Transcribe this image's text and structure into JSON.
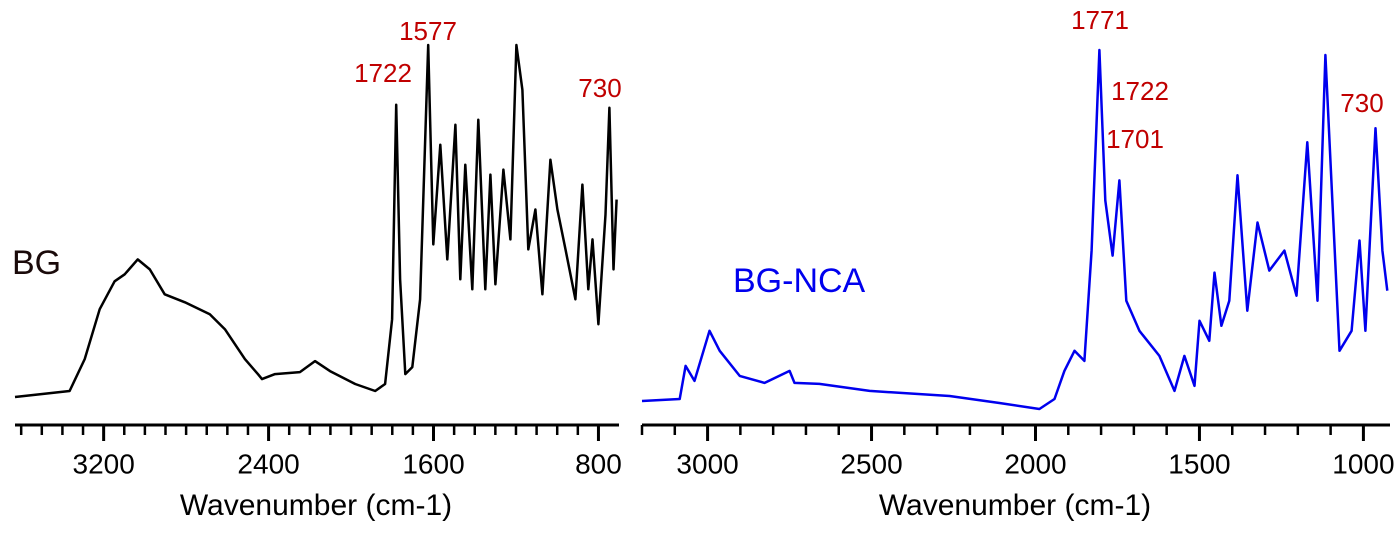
{
  "chart_data": [
    {
      "type": "line",
      "xlabel": "Wavenumber (cm-1)",
      "xlim": [
        3630,
        710
      ],
      "xticks": [
        3200,
        2400,
        1600,
        800
      ],
      "xminor": [
        3600,
        3500,
        3400,
        3300,
        3100,
        3000,
        2900,
        2800,
        2700,
        2600,
        2500,
        2300,
        2200,
        2100,
        2000,
        1900,
        1800,
        1700,
        1500,
        1400,
        1300,
        1200,
        1100,
        1000,
        900
      ],
      "annotation_color": "#c00000",
      "annotations": [
        "1722",
        "1577",
        "730"
      ],
      "series": [
        {
          "name": "BG",
          "color": "#000000",
          "label_color": "#1a0a0a",
          "x": [
            3630,
            3365,
            3292,
            3219,
            3147,
            3098,
            3035,
            2976,
            2904,
            2806,
            2685,
            2612,
            2515,
            2452,
            2432,
            2369,
            2248,
            2175,
            2102,
            1980,
            1883,
            1835,
            1801,
            1781,
            1762,
            1737,
            1703,
            1665,
            1626,
            1601,
            1567,
            1533,
            1494,
            1470,
            1446,
            1412,
            1383,
            1349,
            1324,
            1300,
            1261,
            1227,
            1198,
            1169,
            1140,
            1106,
            1072,
            1033,
            999,
            960,
            912,
            878,
            849,
            829,
            800,
            766,
            747,
            727,
            712
          ],
          "values": [
            2,
            8,
            40,
            90,
            118,
            125,
            140,
            130,
            105,
            97,
            85,
            70,
            40,
            25,
            20,
            25,
            27,
            38,
            28,
            15,
            8,
            15,
            80,
            295,
            120,
            25,
            32,
            100,
            355,
            155,
            255,
            140,
            275,
            120,
            235,
            110,
            280,
            110,
            225,
            115,
            230,
            160,
            355,
            310,
            150,
            190,
            105,
            240,
            190,
            150,
            100,
            215,
            110,
            160,
            75,
            185,
            292,
            130,
            200
          ]
        }
      ]
    },
    {
      "type": "line",
      "xlabel": "Wavenumber (cm-1)",
      "xlim": [
        3200,
        925
      ],
      "xticks": [
        3000,
        2500,
        2000,
        1500,
        1000
      ],
      "xminor": [
        3200,
        3100,
        2900,
        2800,
        2700,
        2600,
        2400,
        2300,
        2200,
        2100,
        1900,
        1800,
        1700,
        1600,
        1400,
        1300,
        1200,
        1100
      ],
      "annotation_color": "#c00000",
      "annotations": [
        "1771",
        "1722",
        "1701",
        "730"
      ],
      "series": [
        {
          "name": "BG-NCA",
          "color": "#0000ee",
          "label_color": "#0000ee",
          "x": [
            3200,
            3085,
            3067,
            3040,
            2994,
            2963,
            2902,
            2826,
            2750,
            2735,
            2659,
            2506,
            2262,
            2110,
            1988,
            1942,
            1912,
            1881,
            1851,
            1829,
            1805,
            1787,
            1765,
            1744,
            1723,
            1683,
            1622,
            1576,
            1546,
            1515,
            1500,
            1470,
            1454,
            1433,
            1409,
            1384,
            1354,
            1323,
            1287,
            1241,
            1204,
            1171,
            1140,
            1116,
            1073,
            1036,
            1012,
            994,
            963,
            942,
            927
          ],
          "values": [
            10,
            12,
            45,
            30,
            80,
            60,
            35,
            28,
            40,
            28,
            27,
            20,
            15,
            8,
            2,
            12,
            40,
            60,
            50,
            160,
            360,
            210,
            155,
            230,
            110,
            80,
            55,
            20,
            55,
            25,
            90,
            70,
            138,
            85,
            110,
            235,
            100,
            188,
            140,
            160,
            115,
            268,
            110,
            355,
            60,
            80,
            170,
            80,
            282,
            160,
            120
          ]
        }
      ]
    }
  ]
}
